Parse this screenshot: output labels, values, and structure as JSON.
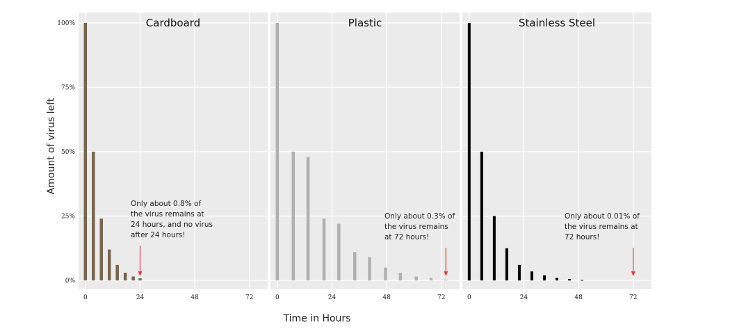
{
  "chart_data": {
    "type": "bar",
    "ylabel": "Amount of virus left",
    "xlabel": "Time in Hours",
    "ylim": [
      0,
      100
    ],
    "xlim": [
      -3,
      80
    ],
    "yticks": [
      {
        "value": 0,
        "label": "0%"
      },
      {
        "value": 25,
        "label": "25%"
      },
      {
        "value": 50,
        "label": "50%"
      },
      {
        "value": 75,
        "label": "75%"
      },
      {
        "value": 100,
        "label": "100%"
      }
    ],
    "xticks": [
      {
        "value": 0,
        "label": "0"
      },
      {
        "value": 24,
        "label": "24"
      },
      {
        "value": 48,
        "label": "48"
      },
      {
        "value": 72,
        "label": "72"
      }
    ],
    "grid": true,
    "panels": [
      {
        "title": "Cardboard",
        "color": "#7a6548",
        "x": [
          0,
          3.5,
          7,
          10.5,
          14,
          17.5,
          21,
          24
        ],
        "values": [
          100,
          50,
          24,
          12,
          6,
          3,
          1.5,
          0.8
        ],
        "annotation": {
          "lines": [
            "Only about 0.8% of",
            "the virus remains at",
            "24 hours, and no virus",
            "after 24 hours!"
          ],
          "arrow_x": 24
        }
      },
      {
        "title": "Plastic",
        "color": "#b0b0b0",
        "x": [
          0,
          7,
          13.5,
          20.5,
          27,
          34,
          40.5,
          47.5,
          54,
          61,
          67.5,
          74
        ],
        "values": [
          100,
          50,
          48,
          24,
          22,
          11,
          9,
          5,
          3,
          1.5,
          1,
          0.3
        ],
        "annotation": {
          "lines": [
            "Only about 0.3% of",
            "the virus remains",
            "at 72 hours!"
          ],
          "arrow_x": 74
        }
      },
      {
        "title": "Stainless Steel",
        "color": "#000000",
        "x": [
          0,
          5.5,
          11,
          16.5,
          22,
          27.5,
          33,
          38.5,
          44,
          49.5
        ],
        "values": [
          100,
          50,
          25,
          12.5,
          6,
          3.5,
          2,
          1,
          0.5,
          0.2
        ],
        "annotation": {
          "lines": [
            "Only about 0.01% of",
            "the virus remains at",
            "72 hours!"
          ],
          "arrow_x": 72
        }
      }
    ]
  }
}
